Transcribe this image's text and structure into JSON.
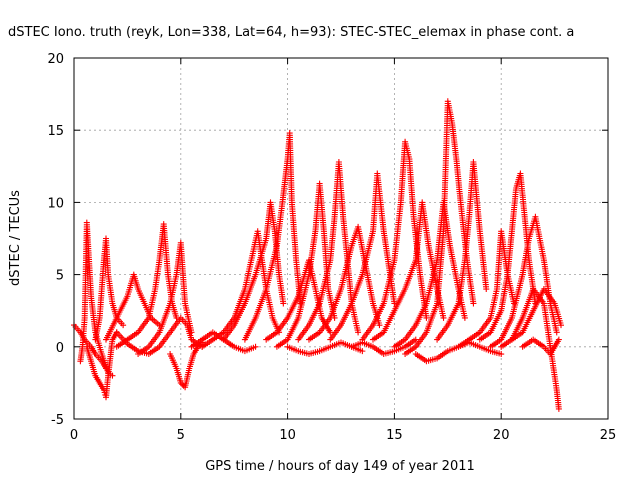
{
  "chart_data": {
    "type": "scatter",
    "title": "dSTEC Iono. truth (reyk, Lon=338, Lat=64, h=93): STEC-STEC_elemax in phase cont. a",
    "xlabel": "GPS time / hours of day 149 of year 2011",
    "ylabel": "dSTEC  / TECUs",
    "xlim": [
      0,
      25
    ],
    "ylim": [
      -5,
      20
    ],
    "xticks": [
      0,
      5,
      10,
      15,
      20,
      25
    ],
    "yticks": [
      -5,
      0,
      5,
      10,
      15,
      20
    ],
    "grid": true,
    "marker": "plus",
    "color": "#ff0000",
    "series": [
      {
        "x": [
          0.0,
          0.3,
          0.5,
          0.8,
          1.0,
          1.3,
          1.5
        ],
        "y": [
          1.5,
          1.0,
          0.5,
          0.0,
          -0.5,
          -1.0,
          -1.5
        ]
      },
      {
        "x": [
          0.3,
          0.4,
          0.5,
          0.6,
          0.8,
          1.0,
          1.3,
          1.6,
          1.8
        ],
        "y": [
          -1.0,
          0.0,
          2.0,
          8.6,
          3.5,
          1.0,
          -0.5,
          -1.8,
          -2.0
        ]
      },
      {
        "x": [
          0.6,
          0.8,
          1.0,
          1.2,
          1.4,
          1.5,
          1.6,
          1.8,
          2.0
        ],
        "y": [
          0.0,
          -1.0,
          -2.0,
          -2.5,
          -3.0,
          -3.5,
          -2.0,
          0.5,
          1.0
        ]
      },
      {
        "x": [
          1.0,
          1.2,
          1.3,
          1.4,
          1.5,
          1.6,
          1.8,
          2.0,
          2.3
        ],
        "y": [
          0.5,
          2.0,
          4.0,
          6.0,
          7.5,
          5.0,
          3.0,
          2.0,
          1.5
        ]
      },
      {
        "x": [
          1.5,
          2.0,
          2.5,
          2.8,
          3.0,
          3.3,
          3.6,
          4.0
        ],
        "y": [
          0.5,
          2.0,
          3.5,
          5.0,
          4.0,
          3.0,
          2.0,
          1.5
        ]
      },
      {
        "x": [
          2.0,
          2.5,
          3.0,
          3.5,
          3.8,
          4.0,
          4.2,
          4.4,
          4.6,
          4.8
        ],
        "y": [
          0.0,
          0.5,
          1.0,
          2.0,
          4.0,
          6.0,
          8.5,
          5.0,
          3.0,
          2.0
        ]
      },
      {
        "x": [
          2.0,
          2.5,
          3.0,
          3.5,
          4.0,
          4.5,
          5.0,
          5.3,
          5.5,
          6.0
        ],
        "y": [
          1.0,
          0.2,
          -0.3,
          -0.5,
          0.0,
          1.0,
          2.0,
          1.5,
          0.5,
          0.0
        ]
      },
      {
        "x": [
          3.0,
          3.5,
          4.0,
          4.5,
          4.8,
          5.0,
          5.2,
          5.5
        ],
        "y": [
          -0.5,
          0.0,
          1.0,
          3.0,
          5.0,
          7.2,
          3.0,
          1.0
        ]
      },
      {
        "x": [
          4.5,
          4.8,
          5.0,
          5.2,
          5.4,
          5.6,
          5.8,
          6.0
        ],
        "y": [
          -0.5,
          -1.5,
          -2.5,
          -2.8,
          -1.5,
          -0.5,
          0.0,
          0.3
        ]
      },
      {
        "x": [
          5.5,
          6.0,
          6.5,
          7.0,
          7.5,
          8.0,
          8.5
        ],
        "y": [
          0.0,
          0.5,
          1.0,
          0.5,
          0.0,
          -0.3,
          0.0
        ]
      },
      {
        "x": [
          6.0,
          6.5,
          7.0,
          7.5,
          8.0,
          8.3,
          8.6,
          8.8,
          9.0,
          9.3,
          9.6
        ],
        "y": [
          0.0,
          0.5,
          1.0,
          2.0,
          4.0,
          6.0,
          8.0,
          6.0,
          4.0,
          2.0,
          1.0
        ]
      },
      {
        "x": [
          7.0,
          7.5,
          8.0,
          8.5,
          9.0,
          9.2,
          9.4,
          9.6,
          9.8
        ],
        "y": [
          0.5,
          1.5,
          3.0,
          5.0,
          7.5,
          10.0,
          8.0,
          5.0,
          3.0
        ]
      },
      {
        "x": [
          8.0,
          8.5,
          9.0,
          9.5,
          9.8,
          10.0,
          10.1,
          10.2,
          10.4,
          10.6
        ],
        "y": [
          0.5,
          2.0,
          4.0,
          7.0,
          10.5,
          13.0,
          14.8,
          10.0,
          6.0,
          3.0
        ]
      },
      {
        "x": [
          9.0,
          9.5,
          10.0,
          10.5,
          10.8,
          11.0,
          11.3,
          11.6,
          12.0
        ],
        "y": [
          0.5,
          1.0,
          2.0,
          3.5,
          5.0,
          6.0,
          4.0,
          2.0,
          1.0
        ]
      },
      {
        "x": [
          9.5,
          10.0,
          10.5,
          11.0,
          11.3,
          11.5,
          11.7,
          11.9,
          12.2
        ],
        "y": [
          0.0,
          0.5,
          2.0,
          5.0,
          8.0,
          11.3,
          8.0,
          4.0,
          2.0
        ]
      },
      {
        "x": [
          10.0,
          10.5,
          11.0,
          11.5,
          12.0,
          12.5,
          13.0,
          13.5
        ],
        "y": [
          0.0,
          -0.3,
          -0.5,
          -0.3,
          0.0,
          0.3,
          0.0,
          -0.3
        ]
      },
      {
        "x": [
          10.5,
          11.0,
          11.5,
          12.0,
          12.2,
          12.4,
          12.6,
          12.8,
          13.0,
          13.3
        ],
        "y": [
          0.5,
          1.5,
          3.0,
          6.0,
          9.0,
          12.8,
          9.0,
          6.0,
          3.0,
          1.0
        ]
      },
      {
        "x": [
          11.0,
          11.5,
          12.0,
          12.5,
          13.0,
          13.3,
          13.6,
          14.0,
          14.3
        ],
        "y": [
          0.5,
          1.0,
          2.0,
          4.0,
          7.0,
          8.3,
          6.0,
          3.0,
          1.5
        ]
      },
      {
        "x": [
          12.0,
          12.5,
          13.0,
          13.5,
          14.0,
          14.2,
          14.5,
          14.8,
          15.0
        ],
        "y": [
          0.5,
          1.5,
          3.0,
          5.0,
          8.0,
          12.0,
          8.0,
          5.0,
          3.0
        ]
      },
      {
        "x": [
          13.0,
          13.5,
          14.0,
          14.5,
          15.0,
          15.5,
          16.0
        ],
        "y": [
          0.0,
          0.3,
          0.0,
          -0.5,
          -0.3,
          0.0,
          0.5
        ]
      },
      {
        "x": [
          13.5,
          14.0,
          14.5,
          15.0,
          15.3,
          15.5,
          15.7,
          15.9,
          16.2,
          16.5
        ],
        "y": [
          0.5,
          1.5,
          3.0,
          6.0,
          10.0,
          14.2,
          13.0,
          9.0,
          5.0,
          2.0
        ]
      },
      {
        "x": [
          14.0,
          14.5,
          15.0,
          15.5,
          16.0,
          16.3,
          16.6,
          17.0,
          17.3
        ],
        "y": [
          0.5,
          1.0,
          2.5,
          4.0,
          6.0,
          10.0,
          7.0,
          4.0,
          2.0
        ]
      },
      {
        "x": [
          15.0,
          15.5,
          16.0,
          16.5,
          17.0,
          17.3,
          17.6,
          18.0,
          18.3
        ],
        "y": [
          0.0,
          0.5,
          1.5,
          3.0,
          6.0,
          10.0,
          7.0,
          4.0,
          2.0
        ]
      },
      {
        "x": [
          15.5,
          16.0,
          16.5,
          17.0,
          17.3,
          17.5,
          17.7,
          17.9,
          18.1,
          18.4,
          18.7
        ],
        "y": [
          -0.5,
          0.0,
          1.0,
          3.0,
          8.0,
          17.0,
          15.5,
          13.0,
          10.0,
          6.0,
          3.0
        ]
      },
      {
        "x": [
          16.0,
          16.5,
          17.0,
          17.5,
          18.0,
          18.5,
          19.0,
          19.5,
          20.0
        ],
        "y": [
          -0.5,
          -1.0,
          -0.8,
          -0.3,
          0.0,
          0.3,
          0.0,
          -0.3,
          -0.5
        ]
      },
      {
        "x": [
          17.0,
          17.5,
          18.0,
          18.3,
          18.5,
          18.7,
          19.0,
          19.3
        ],
        "y": [
          0.5,
          1.5,
          3.0,
          6.0,
          9.0,
          12.8,
          8.0,
          4.0
        ]
      },
      {
        "x": [
          18.0,
          18.5,
          19.0,
          19.5,
          19.8,
          20.0,
          20.3,
          20.6
        ],
        "y": [
          0.0,
          0.5,
          1.0,
          2.0,
          4.0,
          8.0,
          5.0,
          3.0
        ]
      },
      {
        "x": [
          19.0,
          19.5,
          20.0,
          20.3,
          20.5,
          20.7,
          20.9,
          21.1,
          21.3,
          21.6
        ],
        "y": [
          0.5,
          1.0,
          2.5,
          5.0,
          8.0,
          11.0,
          12.0,
          9.0,
          6.0,
          3.0
        ]
      },
      {
        "x": [
          19.5,
          20.0,
          20.5,
          21.0,
          21.3,
          21.6,
          22.0,
          22.3,
          22.6
        ],
        "y": [
          0.0,
          0.5,
          2.0,
          5.0,
          7.5,
          9.0,
          6.0,
          3.0,
          1.0
        ]
      },
      {
        "x": [
          20.5,
          21.0,
          21.5,
          22.0,
          22.2,
          22.4,
          22.6,
          22.7
        ],
        "y": [
          0.5,
          2.0,
          4.0,
          3.0,
          1.0,
          -1.0,
          -3.0,
          -4.3
        ]
      },
      {
        "x": [
          20.0,
          20.5,
          21.0,
          21.5,
          22.0,
          22.5,
          22.8
        ],
        "y": [
          0.0,
          0.5,
          1.0,
          2.5,
          4.0,
          3.0,
          1.5
        ]
      },
      {
        "x": [
          21.0,
          21.5,
          22.0,
          22.3,
          22.5,
          22.7
        ],
        "y": [
          0.0,
          0.5,
          0.0,
          -0.5,
          0.0,
          0.5
        ]
      }
    ]
  }
}
